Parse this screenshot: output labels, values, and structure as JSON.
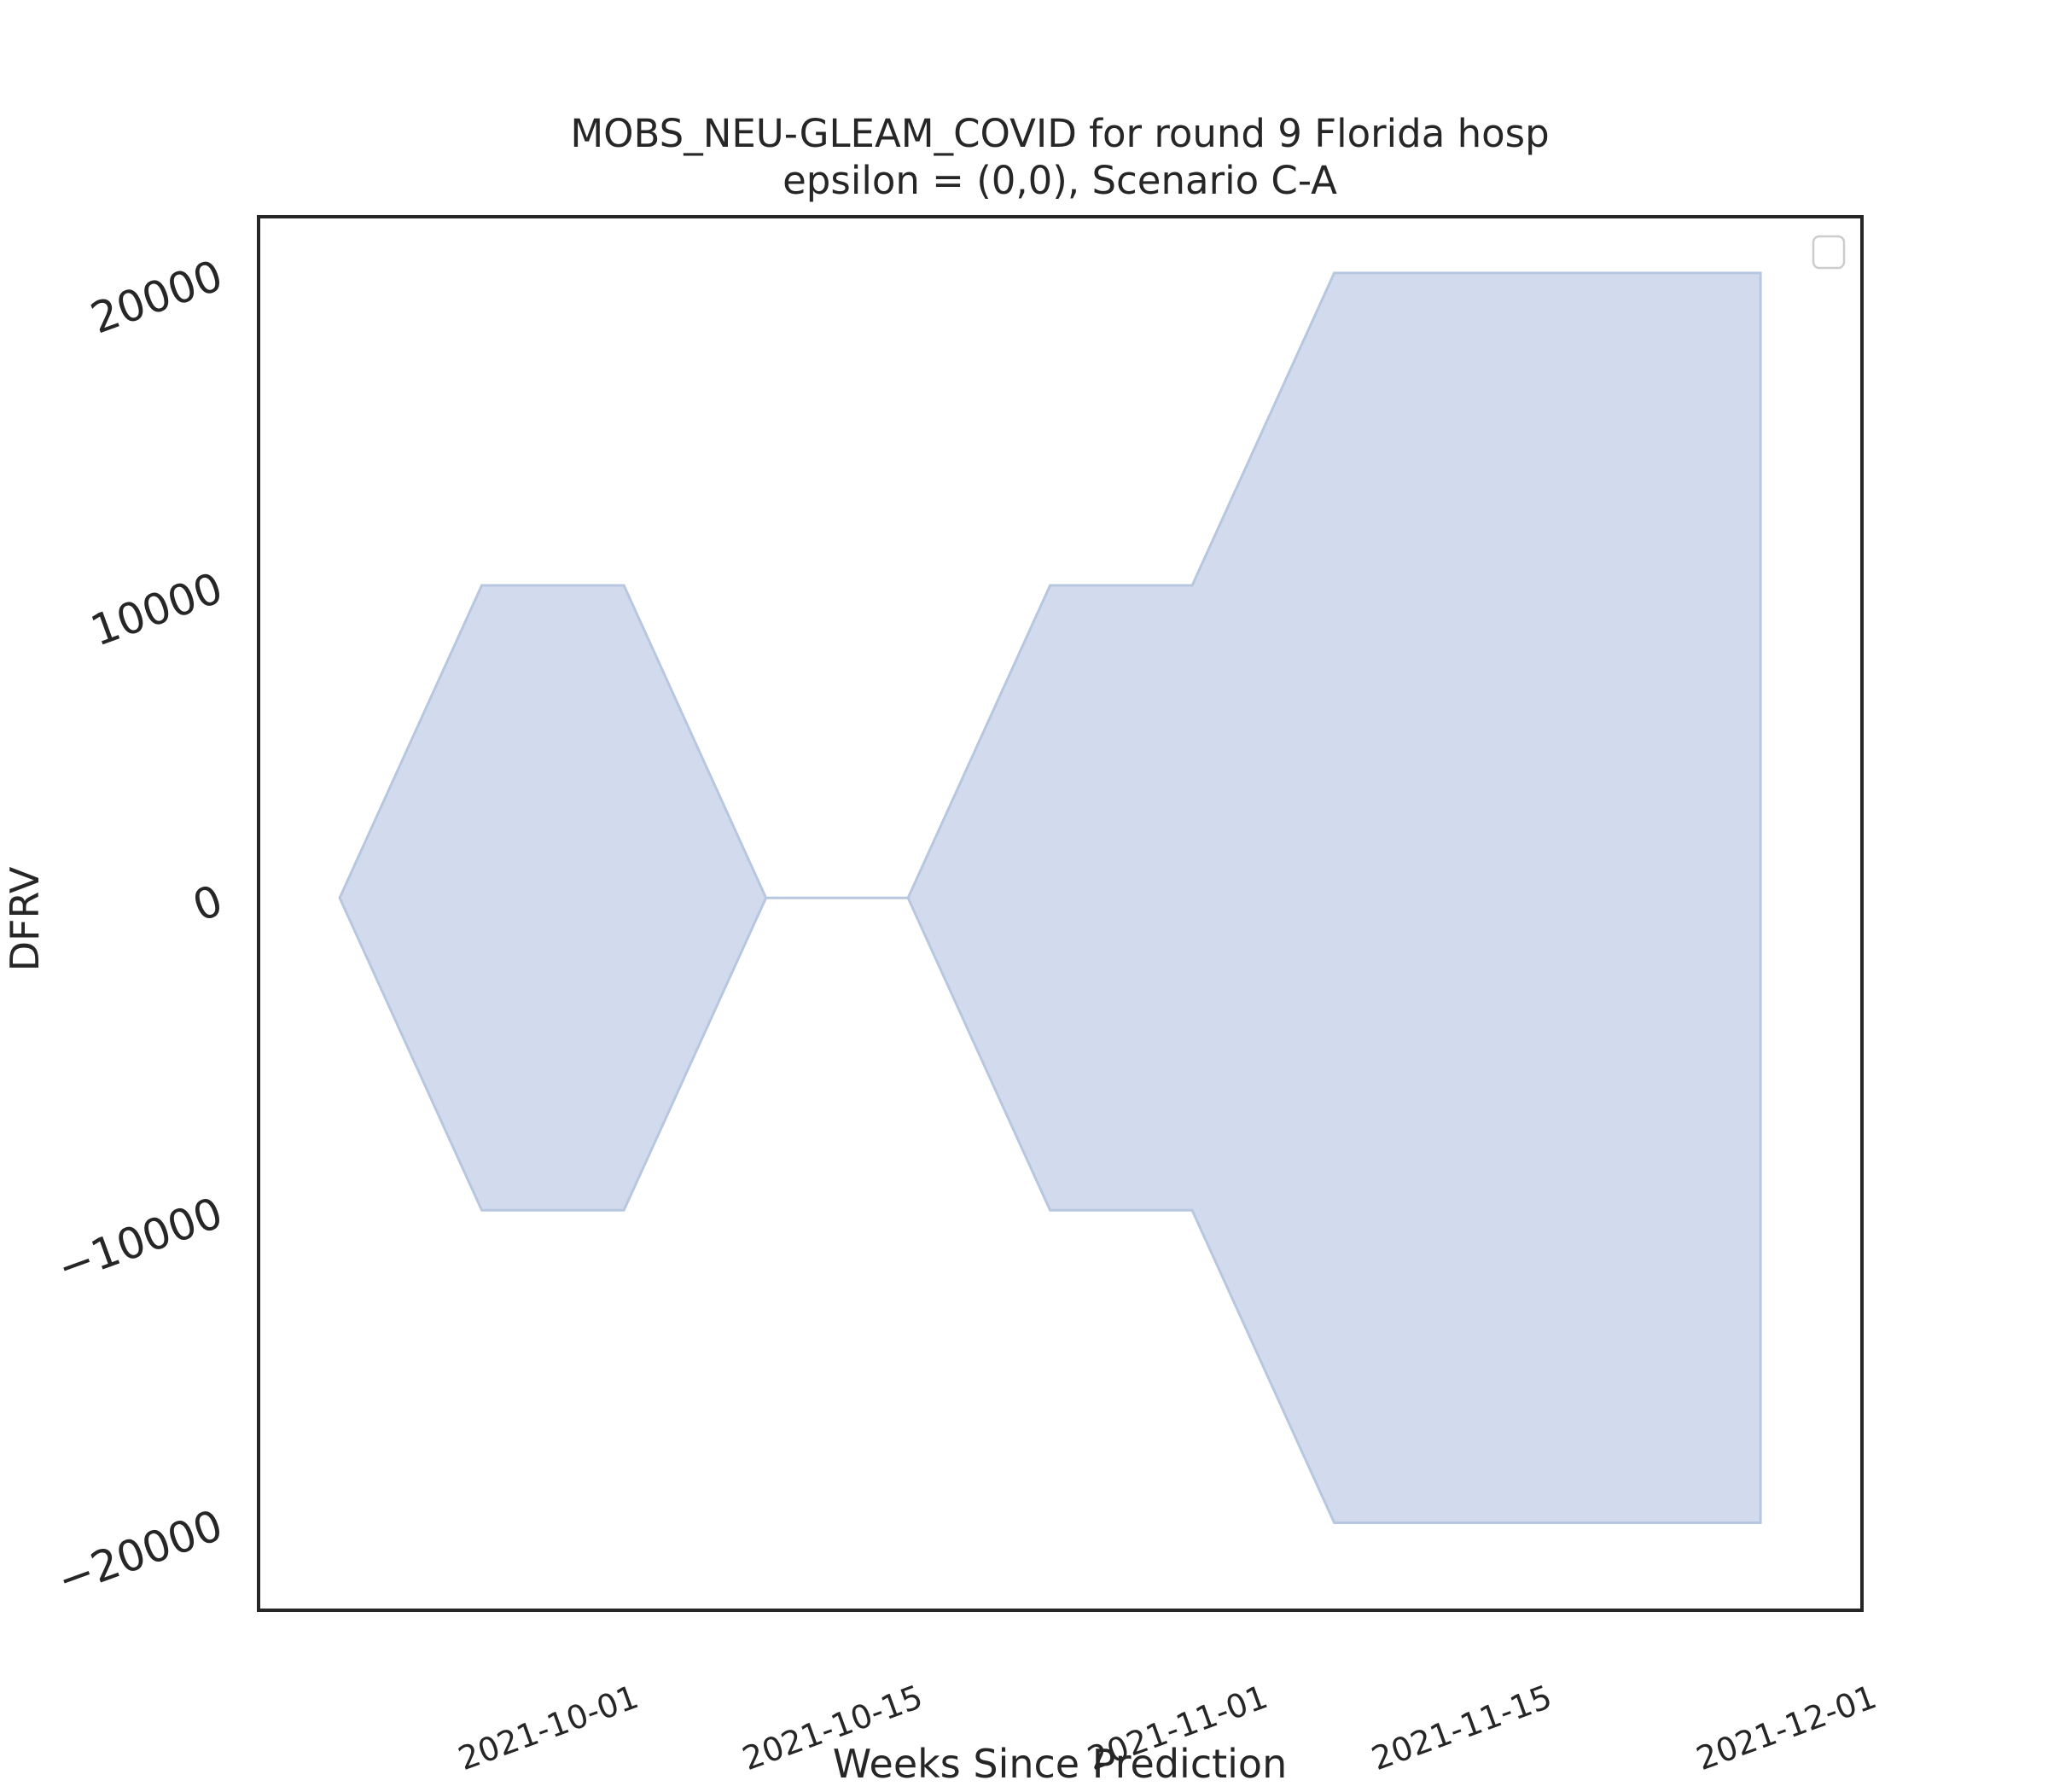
{
  "chart_data": {
    "type": "area",
    "title": "MOBS_NEU-GLEAM_COVID for round 9 Florida hosp",
    "subtitle": "epsilon = (0,0), Scenario C-A",
    "xlabel": "Weeks Since Prediction",
    "ylabel": "DFRV",
    "xlim": [
      "2021-09-17",
      "2021-12-05"
    ],
    "ylim": [
      -22800,
      21800
    ],
    "x_ticks": [
      "2021-10-01",
      "2021-10-15",
      "2021-11-01",
      "2021-11-15",
      "2021-12-01"
    ],
    "y_ticks": [
      -20000,
      -10000,
      0,
      10000,
      20000
    ],
    "y_tick_labels": [
      "−20000",
      "−10000",
      "0",
      "10000",
      "20000"
    ],
    "grid": false,
    "legend": {
      "placement": "top-right",
      "entries": []
    },
    "series": [
      {
        "x": [
          "2021-09-21",
          "2021-09-28",
          "2021-10-05",
          "2021-10-12",
          "2021-10-19",
          "2021-10-26",
          "2021-11-02",
          "2021-11-09",
          "2021-11-16",
          "2021-11-23",
          "2021-11-30"
        ],
        "upper": [
          0,
          10000,
          10000,
          0,
          0,
          10000,
          10000,
          20000,
          20000,
          20000,
          20000
        ],
        "lower": [
          0,
          -10000,
          -10000,
          0,
          0,
          -10000,
          -10000,
          -20000,
          -20000,
          -20000,
          -20000
        ]
      }
    ],
    "colors": {
      "fill": "#d2dbed",
      "stroke": "#b8c7e0",
      "frame": "#262626",
      "text": "#262626"
    }
  }
}
